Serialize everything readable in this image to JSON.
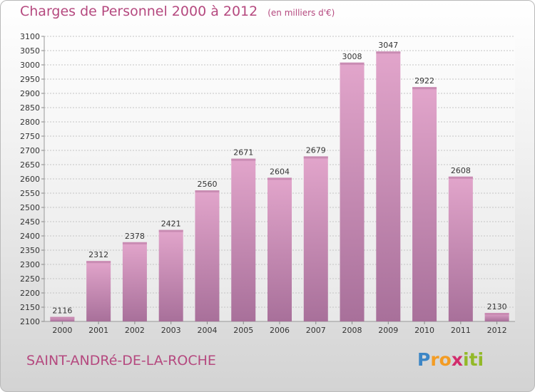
{
  "title": "Charges de Personnel 2000 à 2012",
  "unit_note": "(en milliers d'€)",
  "place": "SAINT-ANDRé-DE-LA-ROCHE",
  "logo": {
    "letters": [
      "P",
      "r",
      "o",
      "x",
      "i",
      "t",
      "i"
    ],
    "colors": [
      "#3c86c6",
      "#f39c24",
      "#f39c24",
      "#d22c6c",
      "#93b928",
      "#93b928",
      "#93b928"
    ]
  },
  "colors": {
    "bar_light": "#e2a5cb",
    "bar_dark": "#a8709a",
    "bar_top": "#c98cb3",
    "title": "#b5497f"
  },
  "chart_data": {
    "type": "bar",
    "categories": [
      "2000",
      "2001",
      "2002",
      "2003",
      "2004",
      "2005",
      "2006",
      "2007",
      "2008",
      "2009",
      "2010",
      "2011",
      "2012"
    ],
    "values": [
      2116,
      2312,
      2378,
      2421,
      2560,
      2671,
      2604,
      2679,
      3008,
      3047,
      2922,
      2608,
      2130
    ],
    "ylim": [
      2100,
      3100
    ],
    "yticks": [
      2100,
      2150,
      2200,
      2250,
      2300,
      2350,
      2400,
      2450,
      2500,
      2550,
      2600,
      2650,
      2700,
      2750,
      2800,
      2850,
      2900,
      2950,
      3000,
      3050,
      3100
    ],
    "grid": true,
    "data_labels": true
  }
}
